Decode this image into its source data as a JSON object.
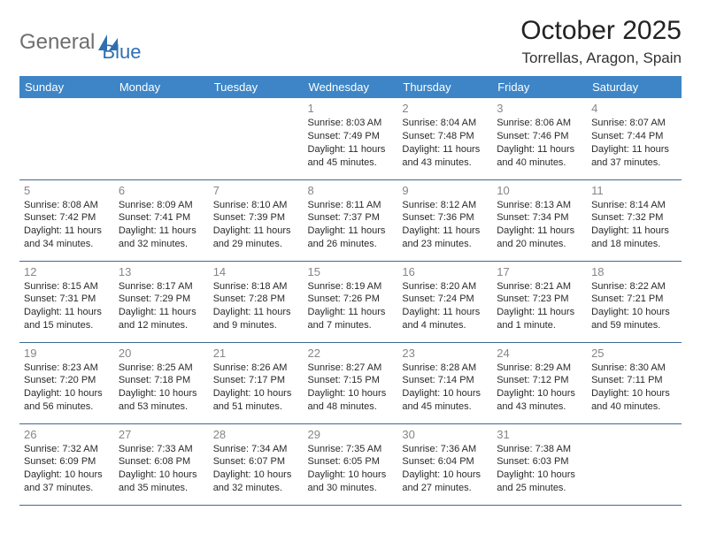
{
  "logo": {
    "text1": "General",
    "text2": "Blue"
  },
  "title": "October 2025",
  "location": "Torrellas, Aragon, Spain",
  "colors": {
    "header_bg": "#3d85c6",
    "header_text": "#ffffff",
    "divider": "#3d6a95",
    "daynum": "#868686",
    "logo_gray": "#6e6e6e",
    "logo_blue": "#2f6fb0",
    "page_bg": "#ffffff"
  },
  "weekdays": [
    "Sunday",
    "Monday",
    "Tuesday",
    "Wednesday",
    "Thursday",
    "Friday",
    "Saturday"
  ],
  "grid": [
    [
      {
        "n": "",
        "sr": "",
        "ss": "",
        "dl1": "",
        "dl2": ""
      },
      {
        "n": "",
        "sr": "",
        "ss": "",
        "dl1": "",
        "dl2": ""
      },
      {
        "n": "",
        "sr": "",
        "ss": "",
        "dl1": "",
        "dl2": ""
      },
      {
        "n": "1",
        "sr": "Sunrise: 8:03 AM",
        "ss": "Sunset: 7:49 PM",
        "dl1": "Daylight: 11 hours",
        "dl2": "and 45 minutes."
      },
      {
        "n": "2",
        "sr": "Sunrise: 8:04 AM",
        "ss": "Sunset: 7:48 PM",
        "dl1": "Daylight: 11 hours",
        "dl2": "and 43 minutes."
      },
      {
        "n": "3",
        "sr": "Sunrise: 8:06 AM",
        "ss": "Sunset: 7:46 PM",
        "dl1": "Daylight: 11 hours",
        "dl2": "and 40 minutes."
      },
      {
        "n": "4",
        "sr": "Sunrise: 8:07 AM",
        "ss": "Sunset: 7:44 PM",
        "dl1": "Daylight: 11 hours",
        "dl2": "and 37 minutes."
      }
    ],
    [
      {
        "n": "5",
        "sr": "Sunrise: 8:08 AM",
        "ss": "Sunset: 7:42 PM",
        "dl1": "Daylight: 11 hours",
        "dl2": "and 34 minutes."
      },
      {
        "n": "6",
        "sr": "Sunrise: 8:09 AM",
        "ss": "Sunset: 7:41 PM",
        "dl1": "Daylight: 11 hours",
        "dl2": "and 32 minutes."
      },
      {
        "n": "7",
        "sr": "Sunrise: 8:10 AM",
        "ss": "Sunset: 7:39 PM",
        "dl1": "Daylight: 11 hours",
        "dl2": "and 29 minutes."
      },
      {
        "n": "8",
        "sr": "Sunrise: 8:11 AM",
        "ss": "Sunset: 7:37 PM",
        "dl1": "Daylight: 11 hours",
        "dl2": "and 26 minutes."
      },
      {
        "n": "9",
        "sr": "Sunrise: 8:12 AM",
        "ss": "Sunset: 7:36 PM",
        "dl1": "Daylight: 11 hours",
        "dl2": "and 23 minutes."
      },
      {
        "n": "10",
        "sr": "Sunrise: 8:13 AM",
        "ss": "Sunset: 7:34 PM",
        "dl1": "Daylight: 11 hours",
        "dl2": "and 20 minutes."
      },
      {
        "n": "11",
        "sr": "Sunrise: 8:14 AM",
        "ss": "Sunset: 7:32 PM",
        "dl1": "Daylight: 11 hours",
        "dl2": "and 18 minutes."
      }
    ],
    [
      {
        "n": "12",
        "sr": "Sunrise: 8:15 AM",
        "ss": "Sunset: 7:31 PM",
        "dl1": "Daylight: 11 hours",
        "dl2": "and 15 minutes."
      },
      {
        "n": "13",
        "sr": "Sunrise: 8:17 AM",
        "ss": "Sunset: 7:29 PM",
        "dl1": "Daylight: 11 hours",
        "dl2": "and 12 minutes."
      },
      {
        "n": "14",
        "sr": "Sunrise: 8:18 AM",
        "ss": "Sunset: 7:28 PM",
        "dl1": "Daylight: 11 hours",
        "dl2": "and 9 minutes."
      },
      {
        "n": "15",
        "sr": "Sunrise: 8:19 AM",
        "ss": "Sunset: 7:26 PM",
        "dl1": "Daylight: 11 hours",
        "dl2": "and 7 minutes."
      },
      {
        "n": "16",
        "sr": "Sunrise: 8:20 AM",
        "ss": "Sunset: 7:24 PM",
        "dl1": "Daylight: 11 hours",
        "dl2": "and 4 minutes."
      },
      {
        "n": "17",
        "sr": "Sunrise: 8:21 AM",
        "ss": "Sunset: 7:23 PM",
        "dl1": "Daylight: 11 hours",
        "dl2": "and 1 minute."
      },
      {
        "n": "18",
        "sr": "Sunrise: 8:22 AM",
        "ss": "Sunset: 7:21 PM",
        "dl1": "Daylight: 10 hours",
        "dl2": "and 59 minutes."
      }
    ],
    [
      {
        "n": "19",
        "sr": "Sunrise: 8:23 AM",
        "ss": "Sunset: 7:20 PM",
        "dl1": "Daylight: 10 hours",
        "dl2": "and 56 minutes."
      },
      {
        "n": "20",
        "sr": "Sunrise: 8:25 AM",
        "ss": "Sunset: 7:18 PM",
        "dl1": "Daylight: 10 hours",
        "dl2": "and 53 minutes."
      },
      {
        "n": "21",
        "sr": "Sunrise: 8:26 AM",
        "ss": "Sunset: 7:17 PM",
        "dl1": "Daylight: 10 hours",
        "dl2": "and 51 minutes."
      },
      {
        "n": "22",
        "sr": "Sunrise: 8:27 AM",
        "ss": "Sunset: 7:15 PM",
        "dl1": "Daylight: 10 hours",
        "dl2": "and 48 minutes."
      },
      {
        "n": "23",
        "sr": "Sunrise: 8:28 AM",
        "ss": "Sunset: 7:14 PM",
        "dl1": "Daylight: 10 hours",
        "dl2": "and 45 minutes."
      },
      {
        "n": "24",
        "sr": "Sunrise: 8:29 AM",
        "ss": "Sunset: 7:12 PM",
        "dl1": "Daylight: 10 hours",
        "dl2": "and 43 minutes."
      },
      {
        "n": "25",
        "sr": "Sunrise: 8:30 AM",
        "ss": "Sunset: 7:11 PM",
        "dl1": "Daylight: 10 hours",
        "dl2": "and 40 minutes."
      }
    ],
    [
      {
        "n": "26",
        "sr": "Sunrise: 7:32 AM",
        "ss": "Sunset: 6:09 PM",
        "dl1": "Daylight: 10 hours",
        "dl2": "and 37 minutes."
      },
      {
        "n": "27",
        "sr": "Sunrise: 7:33 AM",
        "ss": "Sunset: 6:08 PM",
        "dl1": "Daylight: 10 hours",
        "dl2": "and 35 minutes."
      },
      {
        "n": "28",
        "sr": "Sunrise: 7:34 AM",
        "ss": "Sunset: 6:07 PM",
        "dl1": "Daylight: 10 hours",
        "dl2": "and 32 minutes."
      },
      {
        "n": "29",
        "sr": "Sunrise: 7:35 AM",
        "ss": "Sunset: 6:05 PM",
        "dl1": "Daylight: 10 hours",
        "dl2": "and 30 minutes."
      },
      {
        "n": "30",
        "sr": "Sunrise: 7:36 AM",
        "ss": "Sunset: 6:04 PM",
        "dl1": "Daylight: 10 hours",
        "dl2": "and 27 minutes."
      },
      {
        "n": "31",
        "sr": "Sunrise: 7:38 AM",
        "ss": "Sunset: 6:03 PM",
        "dl1": "Daylight: 10 hours",
        "dl2": "and 25 minutes."
      },
      {
        "n": "",
        "sr": "",
        "ss": "",
        "dl1": "",
        "dl2": ""
      }
    ]
  ]
}
